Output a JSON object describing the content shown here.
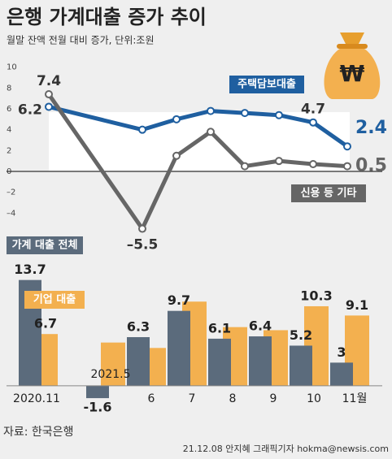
{
  "chart_data": [
    {
      "type": "line",
      "title": "은행 가계대출 증가 추이",
      "subtitle": "월말 잔액 전월 대비 증가, 단위:조원",
      "icon_symbol": "₩",
      "ylim": [
        -4.6,
        10.6
      ],
      "yticks": [
        {
          "value": -4,
          "label": "–4"
        },
        {
          "value": -2,
          "label": "–2"
        },
        0,
        2,
        4,
        6,
        8,
        10
      ],
      "series": [
        {
          "name": "주택담보대출",
          "color": "#1f5fa0",
          "values": [
            6.2,
            4.0,
            5.0,
            5.8,
            5.6,
            5.4,
            4.7,
            2.4
          ],
          "value_labels": [
            "6.2",
            null,
            null,
            null,
            null,
            null,
            "4.7",
            "2.4"
          ]
        },
        {
          "name": "신용 등 기타",
          "color": "#666666",
          "values": [
            7.4,
            -5.5,
            1.5,
            3.8,
            0.5,
            1.0,
            0.7,
            0.5
          ],
          "value_labels": [
            "7.4",
            "–5.5",
            null,
            null,
            null,
            null,
            null,
            "0.5"
          ]
        }
      ]
    },
    {
      "type": "bar",
      "categories": [
        "2020.11",
        "2021.5",
        "6",
        "7",
        "8",
        "9",
        "10",
        "11월"
      ],
      "ylim": [
        -1.8,
        14.4
      ],
      "series": [
        {
          "name": "가계 대출 전체",
          "color": "#5b6b7c",
          "values": [
            13.7,
            -1.6,
            6.3,
            9.7,
            6.1,
            6.4,
            5.2,
            3.0
          ]
        },
        {
          "name": "기업 대출",
          "color": "#f3b04f",
          "values": [
            6.7,
            5.6,
            4.9,
            10.9,
            7.6,
            7.2,
            10.3,
            9.1
          ],
          "value_labels": [
            "6.7",
            null,
            null,
            null,
            null,
            null,
            "10.3",
            "9.1"
          ]
        }
      ],
      "source": "자료: 한국은행",
      "credit": "21.12.08 안지혜 그래픽기자 hokma@newsis.com"
    }
  ]
}
